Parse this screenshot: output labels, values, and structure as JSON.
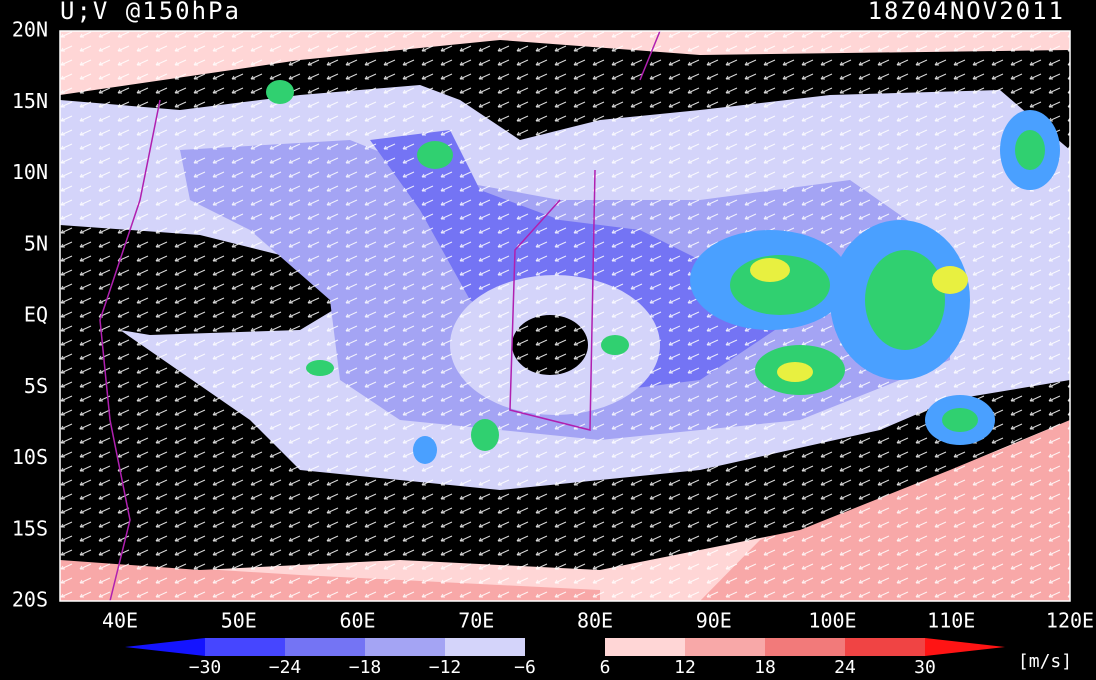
{
  "header": {
    "title": "U;V @150hPa",
    "time": "18Z04NOV2011"
  },
  "map": {
    "lat_labels": [
      "20N",
      "15N",
      "10N",
      "5N",
      "EQ",
      "5S",
      "10S",
      "15S",
      "20S"
    ],
    "lon_labels": [
      "40E",
      "50E",
      "60E",
      "70E",
      "80E",
      "90E",
      "100E",
      "110E",
      "120E"
    ]
  },
  "colorbar": {
    "labels": [
      "−30",
      "−24",
      "−18",
      "−12",
      "−6",
      "6",
      "12",
      "18",
      "24",
      "30"
    ],
    "colors": [
      "#1414ff",
      "#4646ff",
      "#7474f4",
      "#a4a4f4",
      "#d4d4fa",
      "#000000",
      "#ffd6d6",
      "#f8a8a8",
      "#f27a7a",
      "#f04444",
      "#ff1414"
    ],
    "unit": "[m/s]"
  }
}
